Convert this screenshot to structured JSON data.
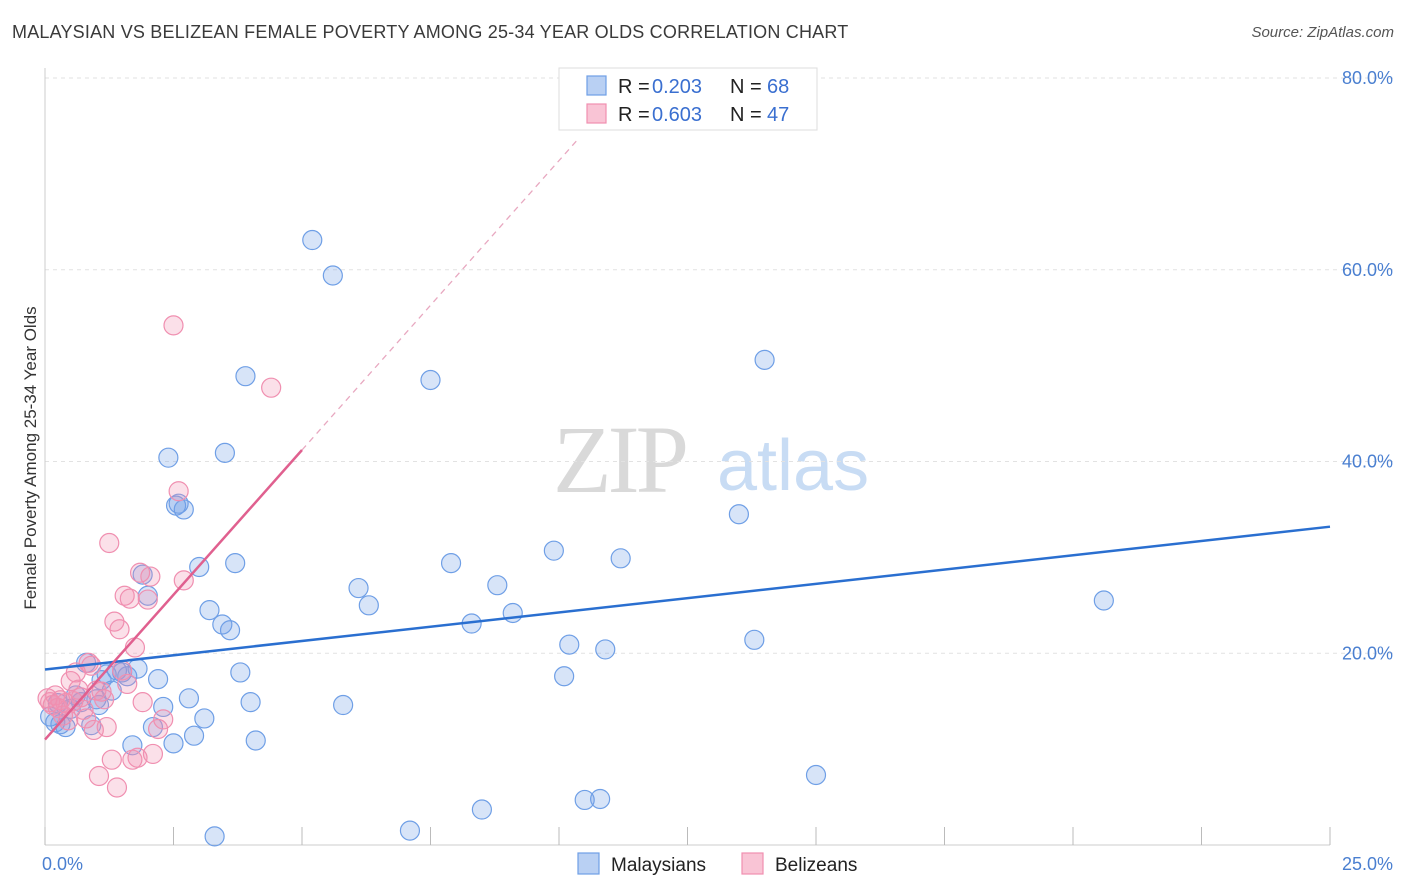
{
  "header": {
    "title": "MALAYSIAN VS BELIZEAN FEMALE POVERTY AMONG 25-34 YEAR OLDS CORRELATION CHART",
    "source": "Source: ZipAtlas.com"
  },
  "watermark": {
    "zip": "ZIP",
    "atlas": "atlas"
  },
  "legend": {
    "r_label": "R =",
    "n_label": "N =",
    "series": [
      {
        "r": "0.203",
        "n": "68"
      },
      {
        "r": "0.603",
        "n": "47"
      }
    ]
  },
  "chart_data": {
    "type": "scatter",
    "title": "MALAYSIAN VS BELIZEAN FEMALE POVERTY AMONG 25-34 YEAR OLDS CORRELATION CHART",
    "xlabel": "",
    "ylabel": "Female Poverty Among 25-34 Year Olds",
    "xlim": [
      0,
      25
    ],
    "ylim": [
      0,
      80
    ],
    "x_tick_labels": [
      "0.0%",
      "25.0%"
    ],
    "y_ticks": [
      20,
      40,
      60,
      80
    ],
    "y_tick_labels": [
      "20.0%",
      "40.0%",
      "60.0%",
      "80.0%"
    ],
    "grid": true,
    "legend_position": "top-center",
    "colors": {
      "malaysians": "#6f9fe6",
      "belizeans": "#f08fb0",
      "blue_line": "#2a6fd0",
      "pink_line": "#e0608f"
    },
    "series": [
      {
        "name": "Malaysians",
        "color": "#6f9fe6",
        "trend": {
          "x": [
            0,
            25
          ],
          "y": [
            18.3,
            33.2
          ]
        },
        "points": [
          [
            0.1,
            13.4
          ],
          [
            0.2,
            12.8
          ],
          [
            0.3,
            12.6
          ],
          [
            0.4,
            12.3
          ],
          [
            0.5,
            14.2
          ],
          [
            0.6,
            15.6
          ],
          [
            0.7,
            14.9
          ],
          [
            0.8,
            19.0
          ],
          [
            0.9,
            12.5
          ],
          [
            1.0,
            15.2
          ],
          [
            1.1,
            17.2
          ],
          [
            1.2,
            17.8
          ],
          [
            1.3,
            16.1
          ],
          [
            1.4,
            18.2
          ],
          [
            1.5,
            18.0
          ],
          [
            1.6,
            17.6
          ],
          [
            1.7,
            10.4
          ],
          [
            1.8,
            18.4
          ],
          [
            1.9,
            28.2
          ],
          [
            2.0,
            26.0
          ],
          [
            2.1,
            12.3
          ],
          [
            2.2,
            17.3
          ],
          [
            2.3,
            14.4
          ],
          [
            2.4,
            40.4
          ],
          [
            2.5,
            10.6
          ],
          [
            2.6,
            35.6
          ],
          [
            2.7,
            35.0
          ],
          [
            2.8,
            15.3
          ],
          [
            2.9,
            11.4
          ],
          [
            3.0,
            29.0
          ],
          [
            3.1,
            13.2
          ],
          [
            3.2,
            24.5
          ],
          [
            3.3,
            0.9
          ],
          [
            3.5,
            40.9
          ],
          [
            3.6,
            22.4
          ],
          [
            3.7,
            29.4
          ],
          [
            3.8,
            18.0
          ],
          [
            3.9,
            48.9
          ],
          [
            4.0,
            14.9
          ],
          [
            4.1,
            10.9
          ],
          [
            5.2,
            63.1
          ],
          [
            5.6,
            59.4
          ],
          [
            5.8,
            14.6
          ],
          [
            6.1,
            26.8
          ],
          [
            6.3,
            25.0
          ],
          [
            7.1,
            1.5
          ],
          [
            7.5,
            48.5
          ],
          [
            7.9,
            29.4
          ],
          [
            8.3,
            23.1
          ],
          [
            8.5,
            3.7
          ],
          [
            8.8,
            27.1
          ],
          [
            9.1,
            24.2
          ],
          [
            9.9,
            30.7
          ],
          [
            10.1,
            17.6
          ],
          [
            10.2,
            20.9
          ],
          [
            10.5,
            4.7
          ],
          [
            10.8,
            4.8
          ],
          [
            10.9,
            20.4
          ],
          [
            11.2,
            29.9
          ],
          [
            13.5,
            34.5
          ],
          [
            13.8,
            21.4
          ],
          [
            14.0,
            50.6
          ],
          [
            15.0,
            7.3
          ],
          [
            20.6,
            25.5
          ],
          [
            0.25,
            14.8
          ],
          [
            1.05,
            14.6
          ],
          [
            2.55,
            35.4
          ],
          [
            3.45,
            23.0
          ]
        ]
      },
      {
        "name": "Belizeans",
        "color": "#f08fb0",
        "trend": {
          "x": [
            0,
            5.0
          ],
          "y": [
            11.0,
            41.2
          ]
        },
        "trend_ext": {
          "x": [
            5.0,
            10.4
          ],
          "y": [
            41.2,
            73.8
          ]
        },
        "points": [
          [
            0.05,
            15.3
          ],
          [
            0.1,
            14.9
          ],
          [
            0.15,
            14.6
          ],
          [
            0.2,
            15.6
          ],
          [
            0.25,
            14.3
          ],
          [
            0.3,
            15.1
          ],
          [
            0.35,
            13.5
          ],
          [
            0.4,
            14.8
          ],
          [
            0.45,
            13.0
          ],
          [
            0.5,
            17.1
          ],
          [
            0.55,
            15.0
          ],
          [
            0.6,
            18.0
          ],
          [
            0.65,
            16.2
          ],
          [
            0.7,
            15.4
          ],
          [
            0.75,
            14.1
          ],
          [
            0.8,
            13.2
          ],
          [
            0.85,
            19.0
          ],
          [
            0.9,
            18.7
          ],
          [
            0.95,
            12.0
          ],
          [
            1.0,
            16.1
          ],
          [
            1.05,
            7.2
          ],
          [
            1.1,
            16.0
          ],
          [
            1.15,
            15.2
          ],
          [
            1.2,
            12.3
          ],
          [
            1.25,
            31.5
          ],
          [
            1.3,
            8.9
          ],
          [
            1.35,
            23.3
          ],
          [
            1.4,
            6.0
          ],
          [
            1.45,
            22.5
          ],
          [
            1.5,
            18.2
          ],
          [
            1.55,
            26.0
          ],
          [
            1.6,
            16.8
          ],
          [
            1.65,
            25.7
          ],
          [
            1.7,
            8.9
          ],
          [
            1.75,
            20.6
          ],
          [
            1.8,
            9.1
          ],
          [
            1.85,
            28.4
          ],
          [
            1.9,
            14.9
          ],
          [
            2.0,
            25.6
          ],
          [
            2.05,
            28.0
          ],
          [
            2.1,
            9.5
          ],
          [
            2.2,
            12.1
          ],
          [
            2.3,
            13.1
          ],
          [
            2.5,
            54.2
          ],
          [
            2.6,
            36.9
          ],
          [
            2.7,
            27.6
          ],
          [
            4.4,
            47.7
          ]
        ]
      }
    ]
  },
  "bottom_legend": {
    "items": [
      "Malaysians",
      "Belizeans"
    ]
  }
}
